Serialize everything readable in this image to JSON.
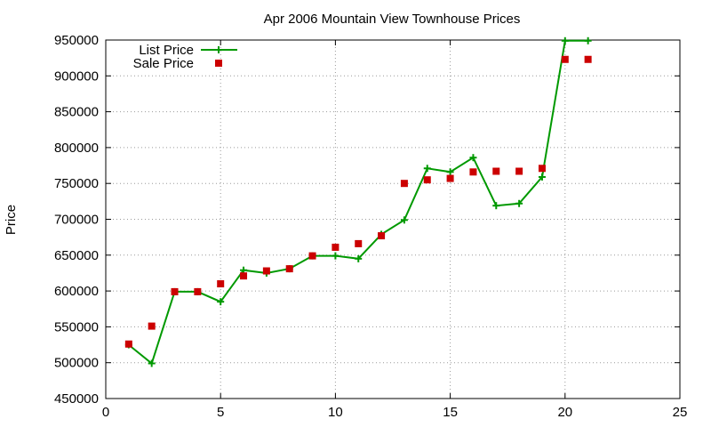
{
  "chart_data": {
    "type": "line",
    "title": "Apr 2006 Mountain View Townhouse Prices",
    "xlabel": "",
    "ylabel": "Price",
    "xlim": [
      0,
      25
    ],
    "ylim": [
      450000,
      950000
    ],
    "x_ticks": [
      0,
      5,
      10,
      15,
      20,
      25
    ],
    "y_ticks": [
      450000,
      500000,
      550000,
      600000,
      650000,
      700000,
      750000,
      800000,
      850000,
      900000,
      950000
    ],
    "grid": true,
    "legend_position": "top-left",
    "series": [
      {
        "name": "List Price",
        "style": "lines+points",
        "marker": "plus",
        "color": "#009900",
        "points": [
          [
            1,
            525000
          ],
          [
            2,
            499000
          ],
          [
            3,
            599000
          ],
          [
            4,
            599000
          ],
          [
            5,
            585000
          ],
          [
            6,
            629000
          ],
          [
            7,
            625000
          ],
          [
            8,
            631000
          ],
          [
            9,
            649000
          ],
          [
            10,
            649000
          ],
          [
            11,
            645000
          ],
          [
            12,
            679000
          ],
          [
            13,
            699000
          ],
          [
            14,
            771000
          ],
          [
            15,
            766000
          ],
          [
            16,
            786000
          ],
          [
            17,
            719000
          ],
          [
            18,
            722000
          ],
          [
            19,
            759000
          ],
          [
            20,
            949000
          ],
          [
            21,
            949000
          ]
        ]
      },
      {
        "name": "Sale Price",
        "style": "points",
        "marker": "square",
        "color": "#cc0000",
        "points": [
          [
            1,
            526000
          ],
          [
            2,
            551000
          ],
          [
            3,
            599000
          ],
          [
            4,
            599000
          ],
          [
            5,
            610000
          ],
          [
            6,
            621000
          ],
          [
            7,
            628000
          ],
          [
            8,
            631000
          ],
          [
            9,
            649000
          ],
          [
            10,
            661000
          ],
          [
            11,
            666000
          ],
          [
            12,
            677000
          ],
          [
            13,
            750000
          ],
          [
            14,
            755000
          ],
          [
            15,
            757000
          ],
          [
            16,
            766000
          ],
          [
            17,
            767000
          ],
          [
            18,
            767000
          ],
          [
            19,
            771000
          ],
          [
            20,
            923000
          ],
          [
            21,
            923000
          ]
        ]
      }
    ]
  }
}
